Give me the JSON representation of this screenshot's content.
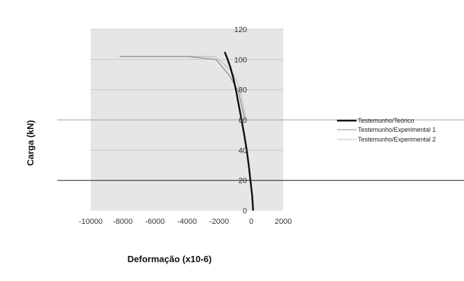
{
  "chart_data": {
    "type": "line",
    "xlabel": "Deformação (x10-6)",
    "ylabel": "Carga (kN)",
    "xlim": [
      -10000,
      2000
    ],
    "ylim": [
      0,
      120
    ],
    "x_ticks": [
      -10000,
      -8000,
      -6000,
      -4000,
      -2000,
      0,
      2000
    ],
    "y_ticks": [
      0,
      20,
      40,
      60,
      80,
      100,
      120
    ],
    "x_tick_labels": [
      "-10000",
      "-8000",
      "-6000",
      "-4000",
      "-2000",
      "0",
      "2000"
    ],
    "y_tick_labels": [
      "0",
      "20",
      "40",
      "60",
      "80",
      "100",
      "120"
    ],
    "grid": "horizontal",
    "legend_position": "right",
    "colors": {
      "plot_area": "#e6e6e6",
      "gridline": "#c8c8c8",
      "teorico": "#111111",
      "exp1": "#8a8a8a",
      "exp2": "#bcbcbc"
    },
    "series": [
      {
        "name": "Testemunho/Teórico",
        "x": [
          120,
          60,
          -50,
          -150,
          -280,
          -430,
          -600,
          -780,
          -950,
          -1120,
          -1300,
          -1500,
          -1650
        ],
        "y": [
          0,
          10,
          20,
          30,
          40,
          50,
          60,
          70,
          80,
          88,
          95,
          101,
          105
        ]
      },
      {
        "name": "Testemunho/Experimental 1",
        "x": [
          -400,
          -800,
          -1400,
          -2200,
          -4000,
          -6000,
          -8200
        ],
        "y": [
          60,
          79,
          90,
          100,
          102,
          102,
          102
        ]
      },
      {
        "name": "Testemunho/Experimental 2",
        "x": [
          -300,
          -500,
          -700,
          -900,
          -1200,
          -1800,
          -2300,
          -6000,
          -8200
        ],
        "y": [
          60,
          70,
          80,
          86,
          92,
          98,
          102,
          102,
          102
        ]
      }
    ],
    "reference_lines": [
      {
        "y": 20,
        "color": "#333333"
      },
      {
        "y": 60,
        "color": "#b0b0b0"
      }
    ]
  }
}
